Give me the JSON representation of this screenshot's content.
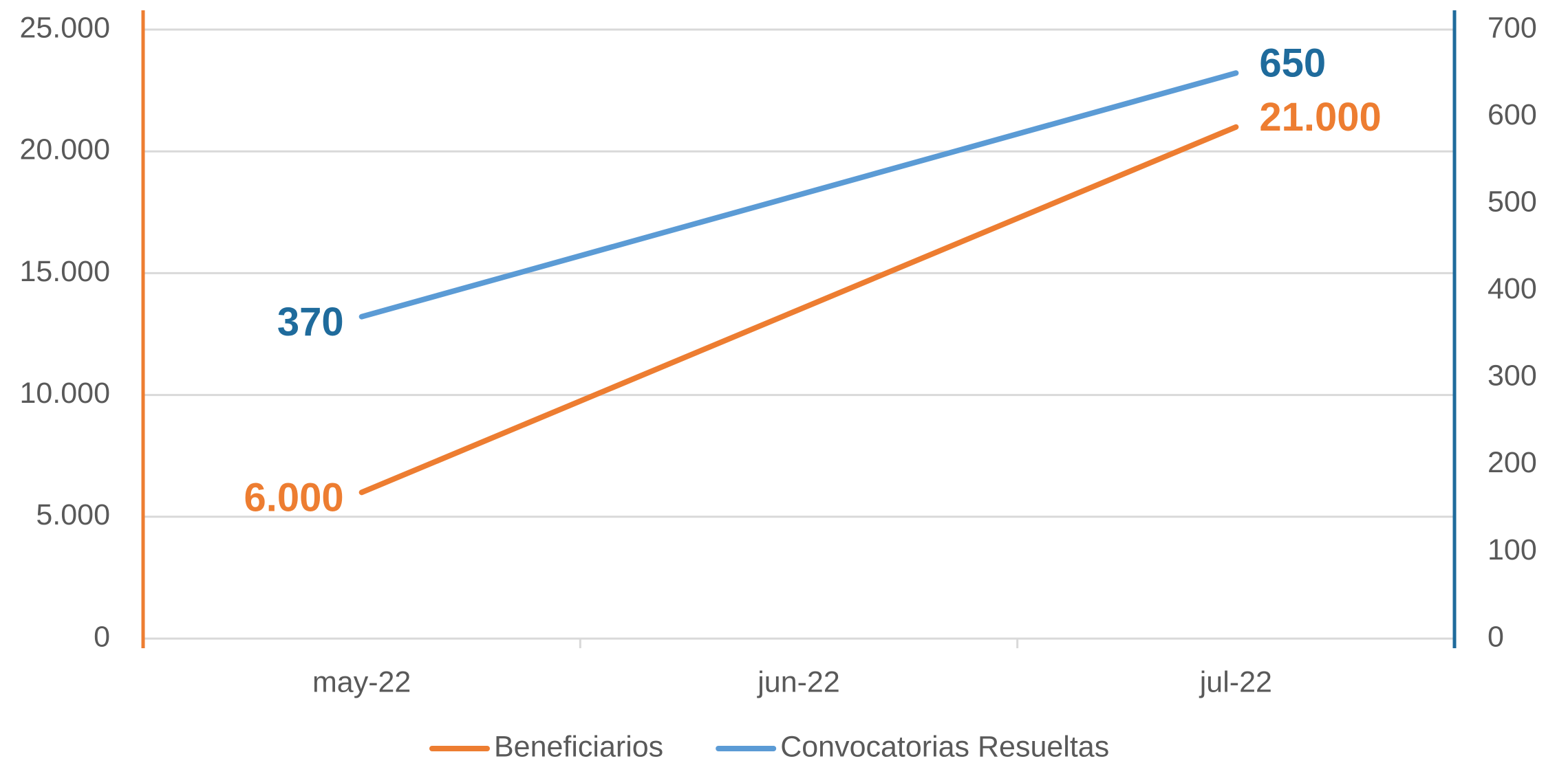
{
  "chart_data": {
    "type": "line",
    "categories": [
      "may-22",
      "jun-22",
      "jul-22"
    ],
    "series": [
      {
        "name": "Beneficiarios",
        "color": "#ed7d31",
        "label_color": "#ed7d31",
        "values": [
          6000,
          13500,
          21000
        ],
        "value_labels": [
          "6.000",
          null,
          "21.000"
        ]
      },
      {
        "name": "Convocatorias Resueltas",
        "color": "#5b9bd5",
        "label_color": "#1f6b9c",
        "axis": "y2",
        "values": [
          370,
          510,
          650
        ],
        "value_labels": [
          "370",
          null,
          "650"
        ]
      }
    ],
    "ylim": [
      0,
      25000
    ],
    "yticks": [
      0,
      {
        "value": 5000,
        "label": "5.000"
      },
      {
        "value": 10000,
        "label": "10.000"
      },
      {
        "value": 15000,
        "label": "15.000"
      },
      {
        "value": 20000,
        "label": "20.000"
      },
      {
        "value": 25000,
        "label": "25.000"
      }
    ],
    "y2lim": [
      0,
      700
    ],
    "y2ticks": [
      0,
      100,
      200,
      300,
      400,
      500,
      600,
      700
    ],
    "y_axis_color": "#ed7d31",
    "y2_axis_color": "#1f6b9c",
    "grid": true,
    "legend": "bottom"
  }
}
